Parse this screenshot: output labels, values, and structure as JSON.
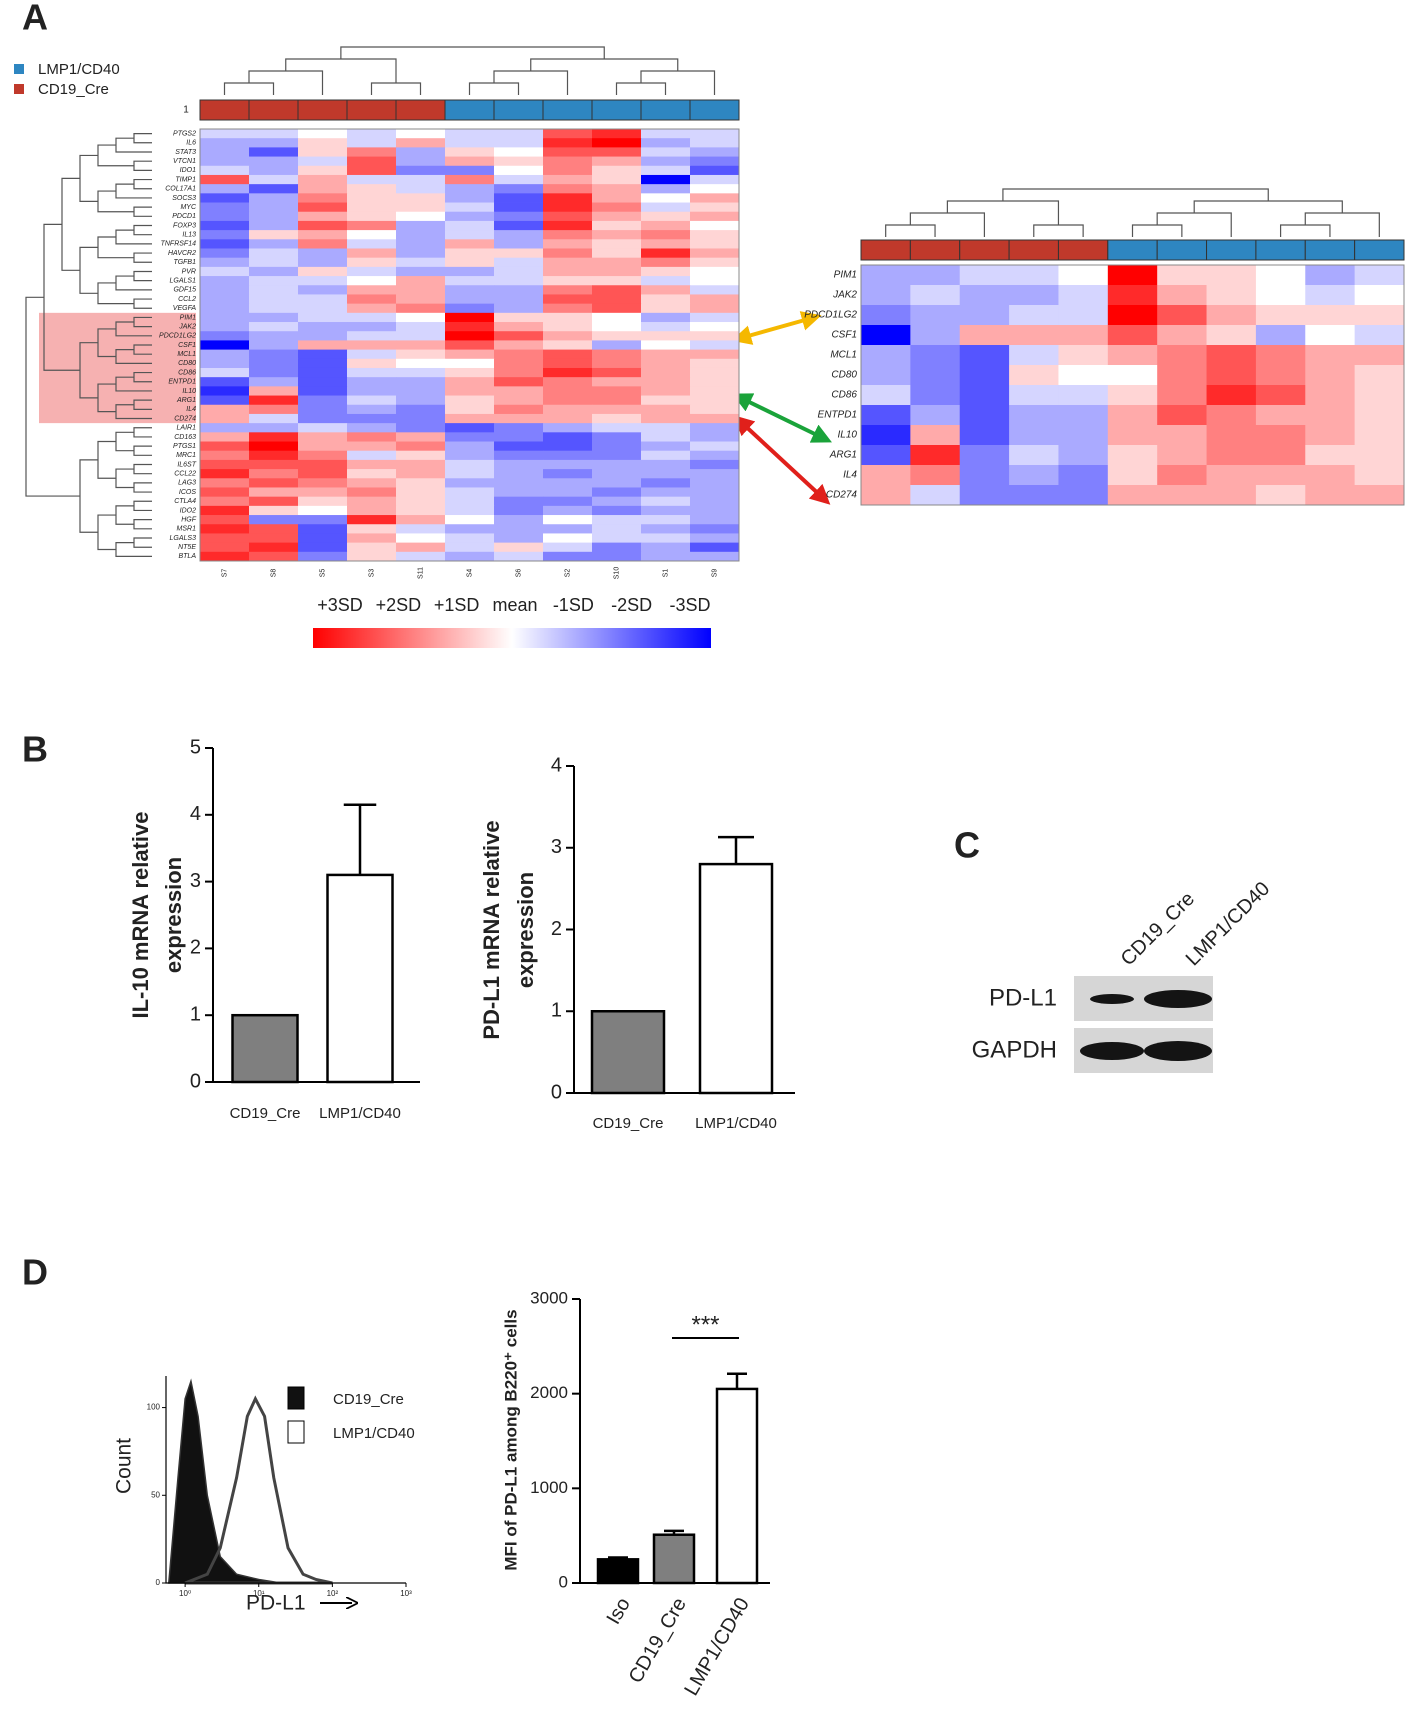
{
  "panel_labels": [
    "A",
    "B",
    "C",
    "D"
  ],
  "chart_data": [
    {
      "type": "heatmap",
      "legend": [
        {
          "name": "LMP1/CD40",
          "color": "#2e86c1"
        },
        {
          "name": "CD19_Cre",
          "color": "#c0392b"
        }
      ],
      "group_label": "1",
      "column_groups": [
        1,
        1,
        1,
        1,
        1,
        0,
        0,
        0,
        0,
        0,
        0
      ],
      "columns": [
        "S7",
        "S8",
        "S5",
        "S3",
        "S11",
        "S4",
        "S6",
        "S2",
        "S10",
        "S1",
        "S9"
      ],
      "rows": [
        "PTGS2",
        "IL6",
        "STAT3",
        "VTCN1",
        "IDO1",
        "TIMP1",
        "COL17A1",
        "SOCS3",
        "MYC",
        "PDCD1",
        "FOXP3",
        "IL13",
        "TNFRSF14",
        "HAVCR2",
        "TGFB1",
        "PVR",
        "LGALS1",
        "GDF15",
        "CCL2",
        "VEGFA",
        "PIM1",
        "JAK2",
        "PDCD1LG2",
        "CSF1",
        "MCL1",
        "CD80",
        "CD86",
        "ENTPD1",
        "IL10",
        "ARG1",
        "IL4",
        "CD274",
        "LAIR1",
        "CD163",
        "PTGS1",
        "MRC1",
        "IL6ST",
        "CCL22",
        "LAG3",
        "ICOS",
        "CTLA4",
        "IDO2",
        "HGF",
        "MSR1",
        "LGALS3",
        "NT5E",
        "BTLA"
      ],
      "values": [
        [
          -0.5,
          -0.5,
          0,
          -0.5,
          0,
          -0.5,
          -0.5,
          2,
          2.5,
          -0.5,
          -0.5
        ],
        [
          -1,
          -1,
          0.5,
          -0.5,
          1,
          -0.5,
          -0.5,
          2.5,
          3,
          -1,
          -0.5
        ],
        [
          -1,
          -2,
          0.5,
          1.5,
          -1,
          0.5,
          0,
          2,
          2,
          -0.5,
          -1
        ],
        [
          -1,
          -1,
          -0.5,
          2,
          -1,
          1,
          0.5,
          1.5,
          1,
          -1,
          -1.5
        ],
        [
          -0.5,
          -1,
          0.5,
          2,
          -1.5,
          -1.5,
          0,
          1.5,
          0.5,
          -0.5,
          -2
        ],
        [
          2,
          -0.5,
          1,
          -0.5,
          -0.5,
          1.5,
          -0.5,
          1,
          0.5,
          -3,
          -0.5
        ],
        [
          -1,
          -2,
          1,
          0.5,
          -0.5,
          -1,
          -1.5,
          1.5,
          1,
          -1,
          0
        ],
        [
          -2,
          -1,
          1.5,
          0.5,
          0.5,
          -1,
          -2,
          2.5,
          1,
          0,
          1
        ],
        [
          -1.5,
          -1,
          2,
          0.5,
          0.5,
          -0.5,
          -2,
          2.5,
          1.5,
          -0.5,
          0.5
        ],
        [
          -1.5,
          -1,
          1,
          0.5,
          0,
          -1,
          -1.5,
          2,
          1,
          0.5,
          1
        ],
        [
          -2,
          -1,
          2,
          1.5,
          -1,
          -0.5,
          -2,
          2.5,
          0.5,
          1,
          0
        ],
        [
          -1.5,
          0.5,
          1,
          0,
          -1,
          -0.5,
          -1,
          1.5,
          1,
          1.5,
          0.5
        ],
        [
          -2,
          -1,
          1.5,
          -0.5,
          -1,
          1,
          -1,
          1,
          0.5,
          1,
          0.5
        ],
        [
          -1.5,
          -0.5,
          -1,
          1,
          -1,
          0.5,
          0.5,
          1.5,
          0.5,
          2.5,
          1
        ],
        [
          -1,
          -0.5,
          -1,
          0.5,
          -0.5,
          0.5,
          -0.5,
          1,
          1,
          1.5,
          0.5
        ],
        [
          -0.5,
          -1,
          0.5,
          -0.5,
          -1,
          -1,
          -0.5,
          1,
          1,
          0.5,
          0
        ],
        [
          -1,
          -0.5,
          -0.5,
          0,
          1,
          -0.5,
          -0.5,
          0.5,
          0.5,
          -0.5,
          0
        ],
        [
          -1,
          -0.5,
          -1,
          1,
          1,
          -1,
          -1,
          1.5,
          2,
          1,
          -0.5
        ],
        [
          -1,
          -0.5,
          -0.5,
          1.5,
          1,
          -1,
          -1,
          2,
          2,
          0.5,
          1
        ],
        [
          -1,
          -0.5,
          -0.5,
          1,
          1.5,
          -1.5,
          -1,
          1.5,
          2,
          0.5,
          1
        ],
        [
          -1,
          -1,
          -0.5,
          -0.5,
          0,
          3,
          0.5,
          0.5,
          0,
          -1,
          -0.5
        ],
        [
          -1,
          -0.5,
          -1,
          -1,
          -0.5,
          2.5,
          1,
          0.5,
          0,
          -0.5,
          0
        ],
        [
          -1.5,
          -1,
          -1,
          -0.5,
          -0.5,
          3,
          2,
          1,
          0.5,
          0.5,
          0.5
        ],
        [
          -3,
          -1,
          1,
          1,
          1,
          2,
          1,
          0.5,
          -1,
          0,
          -0.5
        ],
        [
          -1,
          -1.5,
          -2,
          -0.5,
          0.5,
          1,
          1.5,
          2,
          1.5,
          1,
          1
        ],
        [
          -1,
          -1.5,
          -2,
          0.5,
          0,
          0,
          1.5,
          2,
          1.5,
          1,
          0.5
        ],
        [
          -0.5,
          -1.5,
          -2,
          -0.5,
          -0.5,
          0.5,
          1.5,
          2.5,
          2,
          1,
          0.5
        ],
        [
          -2,
          -1,
          -2,
          -1,
          -1,
          1,
          2,
          1.5,
          1,
          1,
          0.5
        ],
        [
          -2.5,
          1,
          -2,
          -1,
          -1,
          1,
          1,
          1.5,
          1.5,
          1,
          0.5
        ],
        [
          -2,
          2.5,
          -1.5,
          -0.5,
          -1,
          0.5,
          1,
          1.5,
          1.5,
          0.5,
          0.5
        ],
        [
          1,
          1.5,
          -1.5,
          -1,
          -1.5,
          0.5,
          1.5,
          1,
          1,
          1,
          0.5
        ],
        [
          1,
          -0.5,
          -1.5,
          -1.5,
          -1.5,
          1,
          1,
          1,
          0.5,
          1,
          1
        ],
        [
          -1,
          -1,
          -0.5,
          -1,
          -1.5,
          -2,
          -1.5,
          -1,
          -0.5,
          -0.5,
          -1
        ],
        [
          1,
          2.5,
          1,
          1.5,
          1,
          -1.5,
          -1.5,
          -2,
          -1.5,
          -0.5,
          -1
        ],
        [
          2,
          3,
          1,
          1,
          1.5,
          -1,
          -2,
          -2,
          -1.5,
          -1,
          -0.5
        ],
        [
          1.5,
          2.5,
          1.5,
          -0.5,
          0.5,
          -1,
          -1.5,
          -1.5,
          -1.5,
          -0.5,
          -1
        ],
        [
          2,
          2,
          2,
          1,
          1,
          -0.5,
          -1,
          -1,
          -1,
          -1,
          -1.5
        ],
        [
          2.5,
          1.5,
          2,
          0.5,
          1,
          -0.5,
          -1,
          -1.5,
          -1,
          -1,
          -1
        ],
        [
          1.5,
          2,
          1.5,
          1,
          0.5,
          -1,
          -1,
          -1,
          -1,
          -1.5,
          -1
        ],
        [
          2,
          1,
          1,
          1.5,
          0.5,
          -0.5,
          -1,
          -1,
          -1.5,
          -1,
          -1
        ],
        [
          1.5,
          2,
          0.5,
          1,
          0.5,
          -0.5,
          -1.5,
          -1.5,
          -1,
          -0.5,
          -1
        ],
        [
          2.5,
          0.5,
          0,
          1,
          0.5,
          -0.5,
          -1.5,
          -1,
          -1.5,
          -1,
          -1
        ],
        [
          2,
          -1.5,
          -1.5,
          2.5,
          1,
          0,
          -1,
          0,
          -0.5,
          -0.5,
          -1
        ],
        [
          2.5,
          2,
          -2,
          0.5,
          -0.5,
          -1,
          -1,
          -1,
          -0.5,
          -1,
          -1.5
        ],
        [
          2,
          2,
          -2,
          1,
          0,
          -0.5,
          -1,
          0,
          -0.5,
          -0.5,
          -1
        ],
        [
          2,
          2.5,
          -2,
          0.5,
          1,
          -0.5,
          0.5,
          -0.5,
          -1.5,
          -1,
          -2
        ],
        [
          2.5,
          2,
          -1.5,
          0.5,
          -0.5,
          -1,
          -0.5,
          -1.5,
          -1.5,
          -1,
          -1
        ]
      ],
      "clim": [
        -3,
        3
      ],
      "cticks": [
        {
          "value": 3,
          "label": "+3SD"
        },
        {
          "value": 2,
          "label": "+2SD"
        },
        {
          "value": 1,
          "label": "+1SD"
        },
        {
          "value": 0,
          "label": "mean"
        },
        {
          "value": -1,
          "label": "-1SD"
        },
        {
          "value": -2,
          "label": "-2SD"
        },
        {
          "value": -3,
          "label": "-3SD"
        }
      ]
    },
    {
      "type": "bar",
      "ylabel": [
        "IL-10 mRNA relative",
        "expression"
      ],
      "categories": [
        "CD19_Cre",
        "LMP1/CD40"
      ],
      "values": [
        1,
        3.1
      ],
      "errors": [
        0,
        1.05
      ],
      "colors": [
        "#7f7f7f",
        "#ffffff"
      ],
      "ylim": [
        0,
        5
      ],
      "yticks": [
        0,
        1,
        2,
        3,
        4,
        5
      ]
    },
    {
      "type": "bar",
      "ylabel": [
        "PD-L1 mRNA relative",
        "expression"
      ],
      "categories": [
        "CD19_Cre",
        "LMP1/CD40"
      ],
      "values": [
        1,
        2.8
      ],
      "errors": [
        0,
        0.33
      ],
      "colors": [
        "#7f7f7f",
        "#ffffff"
      ],
      "ylim": [
        0,
        4
      ],
      "yticks": [
        0,
        1,
        2,
        3,
        4
      ]
    },
    {
      "type": "blot",
      "lanes": [
        "CD19_Cre",
        "LMP1/CD40"
      ],
      "rows": [
        "PD-L1",
        "GAPDH"
      ]
    },
    {
      "type": "histogram-overlay",
      "ylabel": "Count",
      "xlabel": "PD-L1",
      "log_x": true,
      "legend": "upper right",
      "xlim": [
        0.55,
        1000
      ],
      "xticks": [
        {
          "value": 1,
          "label": "10⁰"
        },
        {
          "value": 10,
          "label": "10¹"
        },
        {
          "value": 100,
          "label": "10²"
        },
        {
          "value": 1000,
          "label": "10³"
        }
      ],
      "ylim": [
        0,
        118
      ],
      "yticks": [
        0,
        50,
        100
      ],
      "series": [
        {
          "name": "CD19_Cre",
          "color": "#111111",
          "x": [
            0.6,
            0.8,
            1,
            1.2,
            1.5,
            2,
            3,
            5,
            10,
            20
          ],
          "y": [
            0,
            60,
            105,
            115,
            95,
            50,
            15,
            5,
            2,
            0
          ]
        },
        {
          "name": "LMP1/CD40",
          "color": "#ffffff",
          "x": [
            1,
            2,
            3,
            5,
            7,
            9,
            12,
            16,
            25,
            40,
            60,
            100
          ],
          "y": [
            0,
            5,
            20,
            60,
            95,
            105,
            95,
            60,
            20,
            5,
            2,
            0
          ]
        }
      ]
    },
    {
      "type": "bar",
      "ylabel": "MFI of PD-L1 among B220⁺ cells",
      "categories": [
        "Iso",
        "CD19_Cre",
        "LMP1/CD40"
      ],
      "values": [
        250,
        510,
        2050
      ],
      "errors": [
        20,
        40,
        160
      ],
      "colors": [
        "#000000",
        "#7f7f7f",
        "#ffffff"
      ],
      "ylim": [
        0,
        3000
      ],
      "yticks": [
        0,
        1000,
        2000,
        3000
      ],
      "annotation": "***"
    }
  ]
}
